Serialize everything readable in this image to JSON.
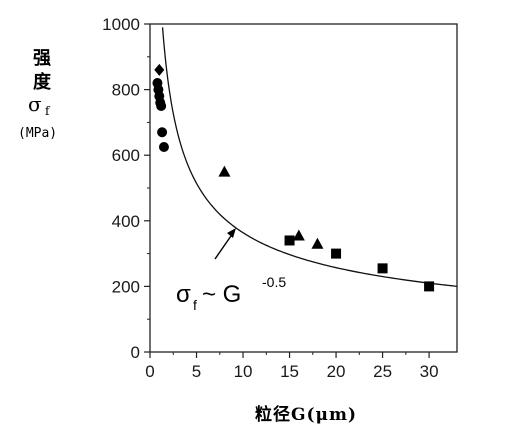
{
  "chart_data": {
    "type": "scatter",
    "title": "",
    "ylabel": {
      "line1": "强",
      "line2": "度",
      "symbol": "σ",
      "subscript": "f",
      "unit": "(MPa)"
    },
    "xlabel": "粒径G(μm)",
    "xlim": [
      0,
      33
    ],
    "ylim": [
      0,
      1000
    ],
    "xticks": [
      0,
      5,
      10,
      15,
      20,
      25,
      30
    ],
    "yticks": [
      0,
      200,
      400,
      600,
      800,
      1000
    ],
    "grid": false,
    "series": [
      {
        "marker": "diamond",
        "points": [
          [
            1.0,
            860
          ]
        ]
      },
      {
        "marker": "circle",
        "points": [
          [
            0.8,
            820
          ],
          [
            0.9,
            800
          ],
          [
            1.0,
            780
          ],
          [
            1.1,
            760
          ],
          [
            1.2,
            750
          ],
          [
            1.3,
            670
          ],
          [
            1.5,
            625
          ]
        ]
      },
      {
        "marker": "triangle",
        "points": [
          [
            8.0,
            550
          ],
          [
            16.0,
            355
          ],
          [
            18.0,
            330
          ]
        ]
      },
      {
        "marker": "square",
        "points": [
          [
            15.0,
            340
          ],
          [
            20.0,
            300
          ],
          [
            25.0,
            255
          ],
          [
            30.0,
            200
          ]
        ]
      }
    ],
    "fit_curve": {
      "formula": "σ_f = k·G^-0.5",
      "k": 1150,
      "x_range": [
        1.35,
        33
      ]
    },
    "annotation": {
      "sigma": "σ",
      "subscript": "f",
      "relation": " ~ G",
      "exponent": "-0.5"
    }
  }
}
